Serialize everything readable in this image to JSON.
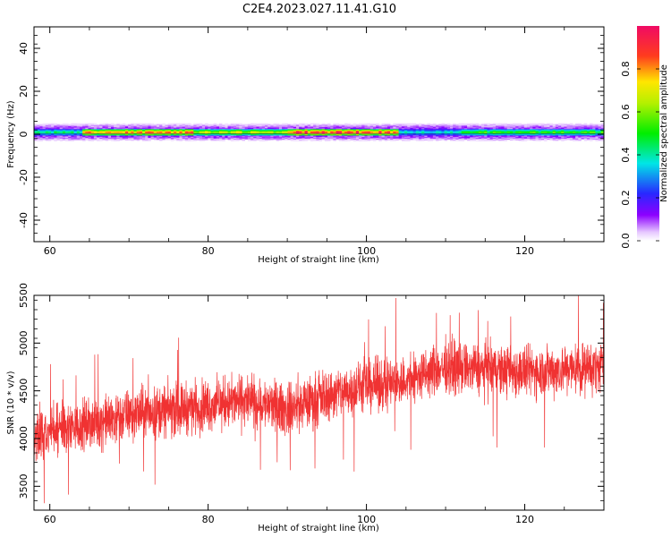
{
  "figure": {
    "title": "C2E4.2023.027.11.41.G10"
  },
  "chart_data": [
    {
      "type": "heatmap",
      "xlabel": "Height of straight line (km)",
      "ylabel": "Frequency (Hz)",
      "xlim": [
        58,
        130
      ],
      "ylim": [
        -50,
        50
      ],
      "x_ticks": [
        60,
        80,
        100,
        120
      ],
      "y_ticks": [
        -40,
        -20,
        0,
        20,
        40
      ],
      "colorbar": {
        "label": "Normalized spectral amplitude",
        "range": [
          0,
          1
        ],
        "ticks": [
          0.0,
          0.2,
          0.4,
          0.6,
          0.8
        ],
        "tick_labels": [
          "0.0",
          "0.2",
          "0.4",
          "0.6",
          "0.8"
        ],
        "colormap": "rainbow (white-violet-blue-cyan-green-yellow-red-magenta)"
      },
      "band": {
        "center_hz": 1,
        "core_halfwidth_hz": 1.5,
        "halo_halfwidth_hz": 4.5,
        "peak_amplitude_segments": [
          {
            "x_start": 58,
            "x_end": 64,
            "level": 0.45
          },
          {
            "x_start": 64,
            "x_end": 78,
            "level": 0.85
          },
          {
            "x_start": 78,
            "x_end": 90,
            "level": 0.7
          },
          {
            "x_start": 90,
            "x_end": 104,
            "level": 0.95
          },
          {
            "x_start": 104,
            "x_end": 112,
            "level": 0.4
          },
          {
            "x_start": 112,
            "x_end": 130,
            "level": 0.55
          }
        ]
      }
    },
    {
      "type": "line",
      "xlabel": "Height of straight line (km)",
      "ylabel": "SNR (10 * v/v)",
      "xlim": [
        58,
        130
      ],
      "ylim": [
        3250,
        5500
      ],
      "x_ticks": [
        60,
        80,
        100,
        120
      ],
      "y_ticks": [
        3500,
        4000,
        4500,
        5000,
        5500
      ],
      "series": [
        {
          "color": "#f03232",
          "trend_x": [
            58,
            65,
            70,
            80,
            85,
            90,
            95,
            100,
            105,
            110,
            120,
            130
          ],
          "trend_y": [
            4050,
            4150,
            4250,
            4350,
            4400,
            4300,
            4450,
            4550,
            4600,
            4750,
            4700,
            4750
          ],
          "noise_amplitude": 220,
          "samples": 3200
        }
      ]
    }
  ]
}
